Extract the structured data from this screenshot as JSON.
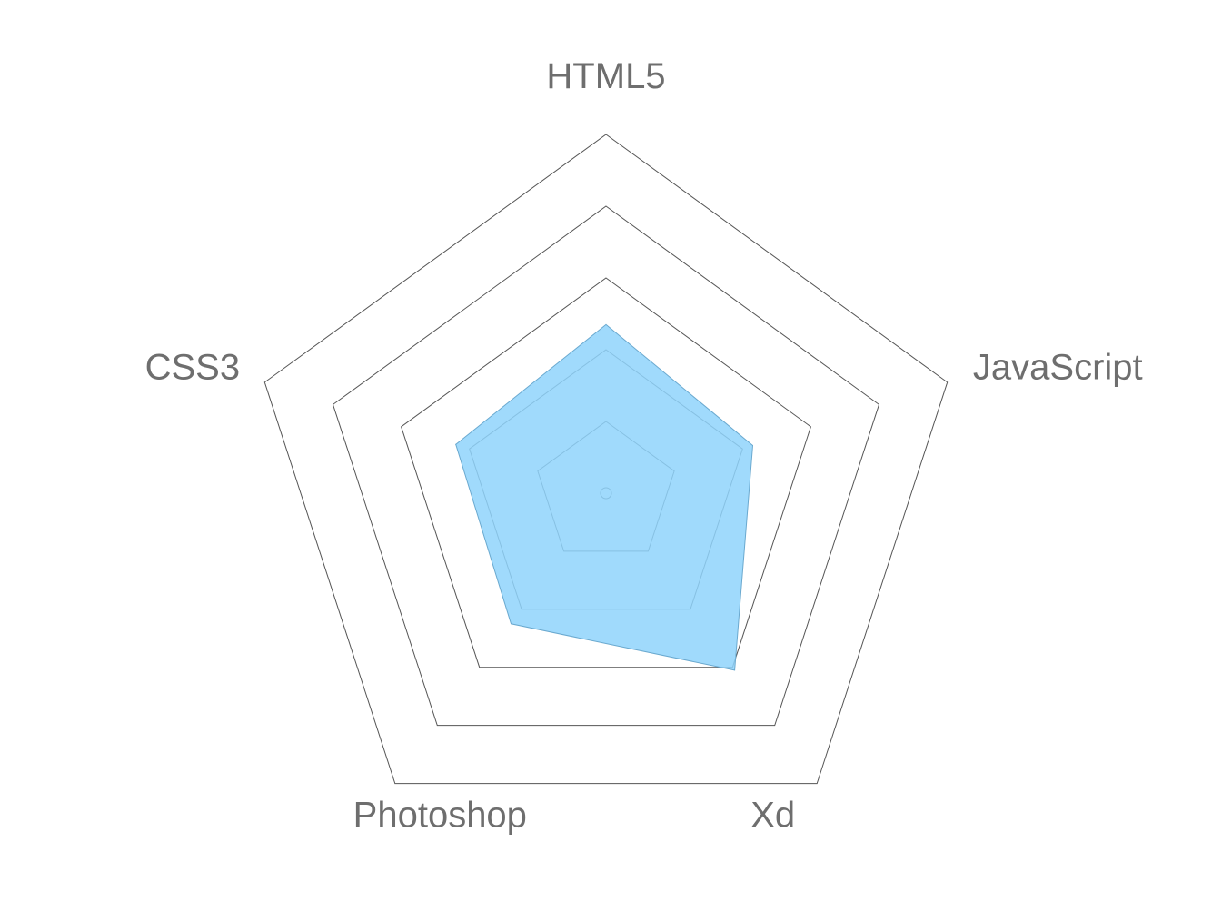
{
  "chart_data": {
    "type": "radar",
    "axes": [
      "HTML5",
      "JavaScript",
      "Xd",
      "Photoshop",
      "CSS3"
    ],
    "values": [
      2.35,
      2.15,
      3.05,
      2.25,
      2.2
    ],
    "rlim": [
      0,
      5
    ],
    "rings": [
      1,
      2,
      3,
      4,
      5
    ],
    "grid": true,
    "legend": "none",
    "colors": {
      "fill": "#8fd4fb",
      "stroke": "#6aa9cf",
      "grid": "#555555",
      "label": "#6e6e6e"
    }
  }
}
